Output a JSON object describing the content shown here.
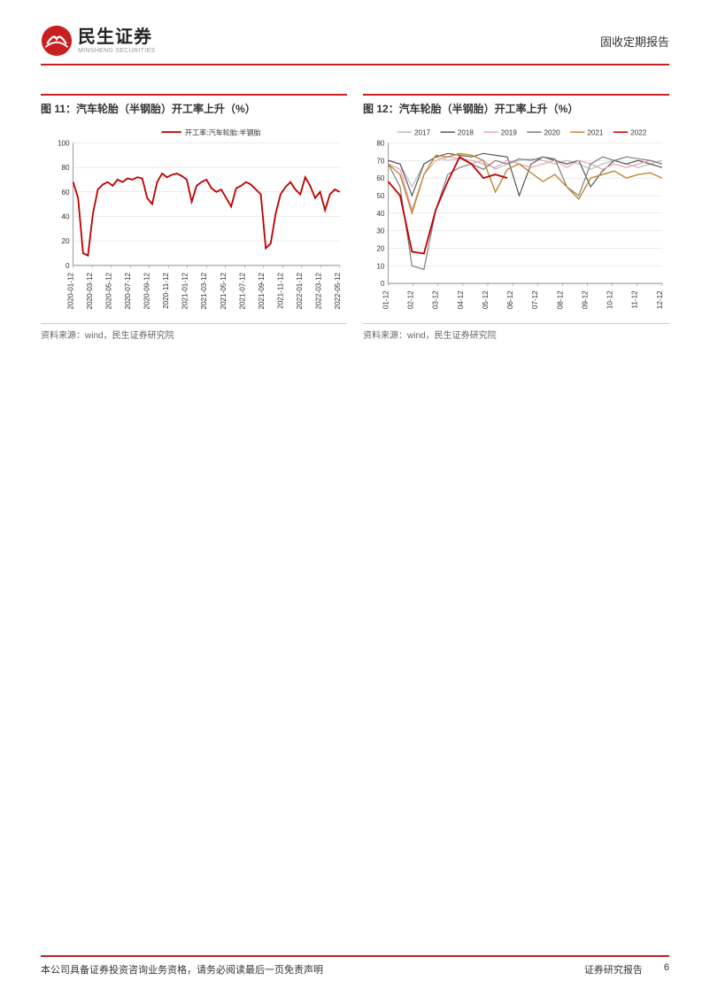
{
  "header": {
    "logo_cn": "民生证券",
    "logo_en": "MINSHENG SECURITIES",
    "right_text": "固收定期报告",
    "accent_color": "#c82020"
  },
  "chart11": {
    "title": "图 11：汽车轮胎（半钢胎）开工率上升（%）",
    "type": "line",
    "legend": [
      {
        "label": "开工率:汽车轮胎:半钢胎",
        "color": "#c00000"
      }
    ],
    "x_labels": [
      "2020-01-12",
      "2020-03-12",
      "2020-05-12",
      "2020-07-12",
      "2020-09-12",
      "2020-11-12",
      "2021-01-12",
      "2021-03-12",
      "2021-05-12",
      "2021-07-12",
      "2021-09-12",
      "2021-11-12",
      "2022-01-12",
      "2022-03-12",
      "2022-05-12"
    ],
    "y_ticks": [
      0,
      20,
      40,
      60,
      80,
      100
    ],
    "ylim": [
      0,
      100
    ],
    "series": {
      "data": [
        68,
        55,
        10,
        8,
        42,
        62,
        66,
        68,
        65,
        70,
        68,
        71,
        70,
        72,
        71,
        55,
        50,
        68,
        75,
        72,
        74,
        75,
        73,
        70,
        52,
        65,
        68,
        70,
        63,
        60,
        62,
        55,
        48,
        63,
        65,
        68,
        66,
        62,
        58,
        14,
        18,
        42,
        58,
        64,
        68,
        62,
        58,
        72,
        65,
        55,
        60,
        45,
        58,
        62,
        60
      ],
      "color": "#c00000",
      "line_width": 1.8
    },
    "grid_color": "#d9d9d9",
    "axis_color": "#808080",
    "tick_fontsize": 8,
    "title_fontsize": 12,
    "source": "资料来源：wind，民生证券研究院"
  },
  "chart12": {
    "title": "图 12：汽车轮胎（半钢胎）开工率上升（%）",
    "type": "line",
    "legend": [
      {
        "label": "2017",
        "color": "#bfbfbf"
      },
      {
        "label": "2018",
        "color": "#595959"
      },
      {
        "label": "2019",
        "color": "#e8a5b5"
      },
      {
        "label": "2020",
        "color": "#7f7f7f"
      },
      {
        "label": "2021",
        "color": "#c08830"
      },
      {
        "label": "2022",
        "color": "#c00000"
      }
    ],
    "x_labels": [
      "01-12",
      "02-12",
      "03-12",
      "04-12",
      "05-12",
      "06-12",
      "07-12",
      "08-12",
      "09-12",
      "10-12",
      "11-12",
      "12-12"
    ],
    "y_ticks": [
      0,
      10,
      20,
      30,
      40,
      50,
      60,
      70,
      80
    ],
    "ylim": [
      0,
      80
    ],
    "series": [
      {
        "name": "2017",
        "color": "#bfbfbf",
        "line_width": 1.2,
        "data": [
          70,
          68,
          55,
          68,
          72,
          70,
          71,
          68,
          70,
          65,
          68,
          70,
          71,
          70,
          68,
          70,
          68,
          65,
          68,
          70,
          68,
          66,
          68,
          70
        ]
      },
      {
        "name": "2018",
        "color": "#595959",
        "line_width": 1.2,
        "data": [
          70,
          68,
          50,
          68,
          72,
          74,
          73,
          72,
          74,
          73,
          72,
          50,
          68,
          72,
          70,
          68,
          70,
          55,
          64,
          70,
          68,
          70,
          68,
          66
        ]
      },
      {
        "name": "2019",
        "color": "#e8a5b5",
        "line_width": 1.2,
        "data": [
          68,
          65,
          42,
          62,
          70,
          72,
          71,
          70,
          68,
          66,
          70,
          68,
          66,
          68,
          70,
          66,
          70,
          68,
          65,
          68,
          66,
          68,
          70,
          68
        ]
      },
      {
        "name": "2020",
        "color": "#7f7f7f",
        "line_width": 1.2,
        "data": [
          68,
          55,
          10,
          8,
          42,
          62,
          66,
          68,
          65,
          70,
          68,
          71,
          70,
          72,
          71,
          55,
          50,
          68,
          72,
          70,
          72,
          71,
          70,
          68
        ]
      },
      {
        "name": "2021",
        "color": "#c08830",
        "line_width": 1.4,
        "data": [
          68,
          62,
          40,
          62,
          73,
          72,
          74,
          73,
          70,
          52,
          65,
          68,
          63,
          58,
          62,
          55,
          48,
          60,
          62,
          64,
          60,
          62,
          63,
          60
        ]
      },
      {
        "name": "2022",
        "color": "#c00000",
        "line_width": 1.8,
        "data": [
          58,
          50,
          18,
          17,
          42,
          58,
          72,
          68,
          60,
          62,
          60
        ]
      }
    ],
    "grid_color": "#d9d9d9",
    "axis_color": "#808080",
    "tick_fontsize": 8,
    "title_fontsize": 12,
    "source": "资料来源：wind，民生证券研究院"
  },
  "footer": {
    "left": "本公司具备证券投资咨询业务资格，请务必阅读最后一页免责声明",
    "right_label": "证券研究报告",
    "page_number": "6"
  }
}
